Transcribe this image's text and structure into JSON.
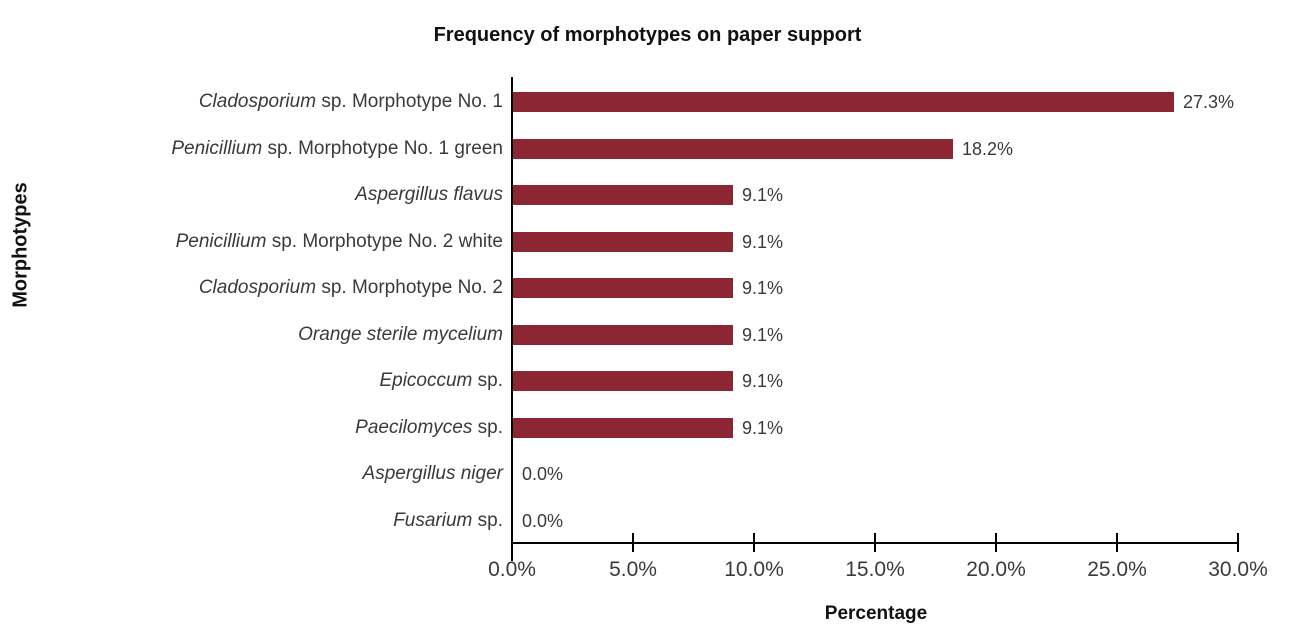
{
  "chart_data": {
    "type": "bar",
    "orientation": "horizontal",
    "title": "Frequency of morphotypes on paper support",
    "xlabel": "Percentage",
    "ylabel": "Morphotypes",
    "xlim": [
      0,
      30
    ],
    "x_tick_labels": [
      "0.0%",
      "5.0%",
      "10.0%",
      "15.0%",
      "20.0%",
      "25.0%",
      "30.0%"
    ],
    "grid": false,
    "legend": false,
    "bar_color": "#8d2633",
    "axis_color": "#000000",
    "text_color": "#3a3a3a",
    "categories": [
      "Cladosporium sp. Morphotype No. 1",
      "Penicillium sp. Morphotype No. 1 green",
      "Aspergillus flavus",
      "Penicillium sp. Morphotype No. 2 white",
      "Cladosporium sp. Morphotype No. 2",
      "Orange sterile mycelium",
      "Epicoccum sp.",
      "Paecilomyces sp.",
      "Aspergillus niger",
      "Fusarium sp."
    ],
    "category_segments": [
      [
        {
          "text": "Cladosporium",
          "italic": true
        },
        {
          "text": " sp. Morphotype No. 1",
          "italic": false
        }
      ],
      [
        {
          "text": "Penicillium",
          "italic": true
        },
        {
          "text": " sp. Morphotype No. 1 green",
          "italic": false
        }
      ],
      [
        {
          "text": "Aspergillus flavus",
          "italic": true
        }
      ],
      [
        {
          "text": "Penicillium",
          "italic": true
        },
        {
          "text": " sp. Morphotype No. 2 white",
          "italic": false
        }
      ],
      [
        {
          "text": "Cladosporium",
          "italic": true
        },
        {
          "text": " sp. Morphotype No. 2",
          "italic": false
        }
      ],
      [
        {
          "text": "Orange sterile mycelium",
          "italic": true
        }
      ],
      [
        {
          "text": "Epicoccum",
          "italic": true
        },
        {
          "text": " sp.",
          "italic": false
        }
      ],
      [
        {
          "text": "Paecilomyces",
          "italic": true
        },
        {
          "text": " sp.",
          "italic": false
        }
      ],
      [
        {
          "text": "Aspergillus niger",
          "italic": true
        }
      ],
      [
        {
          "text": "Fusarium",
          "italic": true
        },
        {
          "text": " sp.",
          "italic": false
        }
      ]
    ],
    "values": [
      27.3,
      18.2,
      9.1,
      9.1,
      9.1,
      9.1,
      9.1,
      9.1,
      0.0,
      0.0
    ],
    "value_labels": [
      "27.3%",
      "18.2%",
      "9.1%",
      "9.1%",
      "9.1%",
      "9.1%",
      "9.1%",
      "9.1%",
      "0.0%",
      "0.0%"
    ]
  }
}
